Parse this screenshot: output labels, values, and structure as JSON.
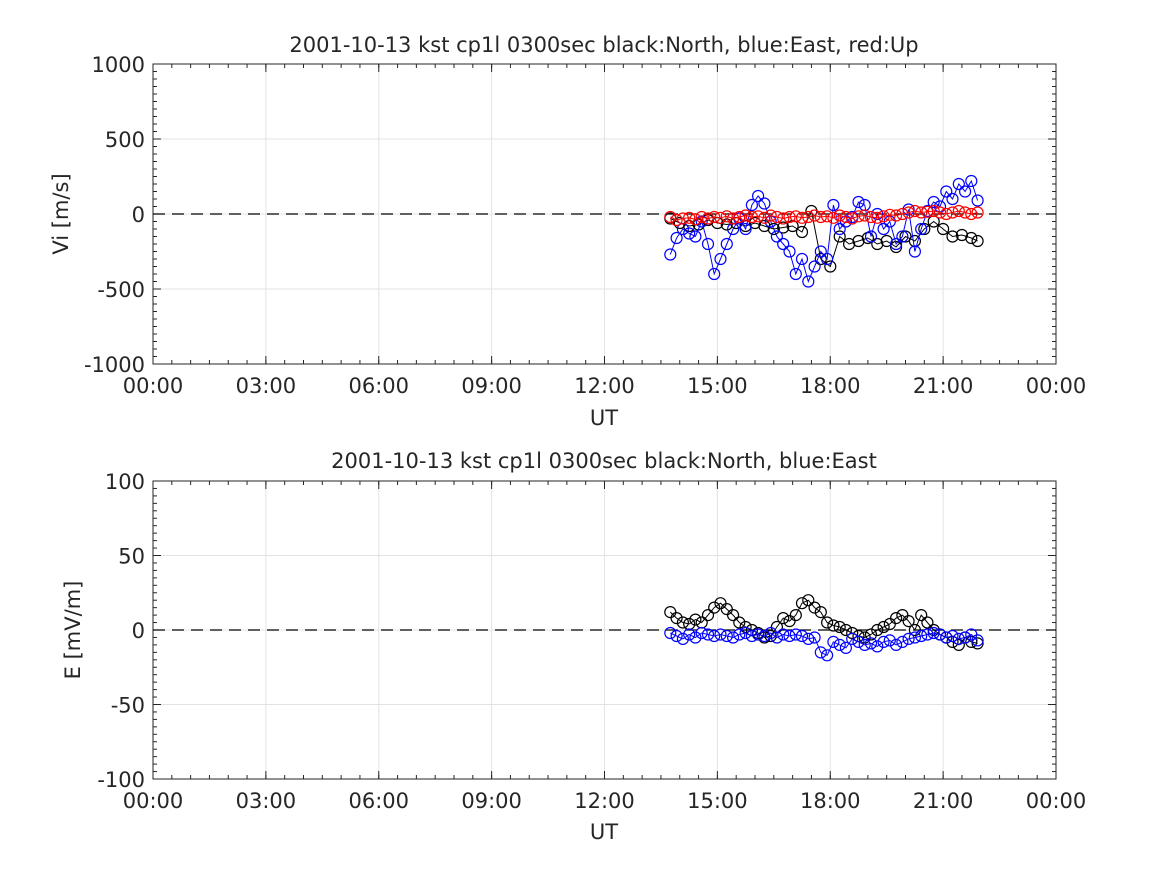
{
  "chart_data": [
    {
      "type": "scatter",
      "title": "2001-10-13 kst cp1l 0300sec black:North, blue:East, red:Up",
      "xlabel": "UT",
      "ylabel": "Vi [m/s]",
      "xlim": [
        "00:00",
        "24:00"
      ],
      "ylim": [
        -1000,
        1000
      ],
      "x_ticks": [
        "00:00",
        "03:00",
        "06:00",
        "09:00",
        "12:00",
        "15:00",
        "18:00",
        "21:00",
        "00:00"
      ],
      "y_ticks": [
        "-1000",
        "-500",
        "0",
        "500",
        "1000"
      ],
      "grid": true,
      "reference_line": {
        "y": 0,
        "style": "dashed"
      },
      "series": [
        {
          "name": "North",
          "color": "#000000",
          "marker": "circle",
          "x": [
            "13:45",
            "14:00",
            "14:15",
            "14:30",
            "14:45",
            "15:00",
            "15:15",
            "15:30",
            "15:45",
            "16:00",
            "16:15",
            "16:30",
            "16:45",
            "17:00",
            "17:15",
            "17:30",
            "17:45",
            "18:00",
            "18:15",
            "18:30",
            "18:45",
            "19:00",
            "19:15",
            "19:30",
            "19:45",
            "20:00",
            "20:15",
            "20:30",
            "20:45",
            "21:00",
            "21:15",
            "21:30",
            "21:45",
            "21:55"
          ],
          "y": [
            -30,
            -60,
            -80,
            -70,
            -40,
            -60,
            -70,
            -60,
            -80,
            -60,
            -80,
            -100,
            -90,
            -80,
            -120,
            20,
            -300,
            -350,
            -150,
            -200,
            -180,
            -160,
            -200,
            -180,
            -220,
            -150,
            -180,
            -100,
            -50,
            -100,
            -150,
            -140,
            -160,
            -180
          ]
        },
        {
          "name": "East",
          "color": "#0000ff",
          "marker": "circle",
          "x": [
            "13:45",
            "13:55",
            "14:05",
            "14:15",
            "14:25",
            "14:35",
            "14:45",
            "14:55",
            "15:05",
            "15:15",
            "15:25",
            "15:35",
            "15:45",
            "15:55",
            "16:05",
            "16:15",
            "16:25",
            "16:35",
            "16:45",
            "16:55",
            "17:05",
            "17:15",
            "17:25",
            "17:35",
            "17:45",
            "17:55",
            "18:05",
            "18:15",
            "18:25",
            "18:35",
            "18:45",
            "18:55",
            "19:05",
            "19:15",
            "19:25",
            "19:35",
            "19:45",
            "19:55",
            "20:05",
            "20:15",
            "20:25",
            "20:35",
            "20:45",
            "20:55",
            "21:05",
            "21:15",
            "21:25",
            "21:35",
            "21:45",
            "21:55"
          ],
          "y": [
            -270,
            -160,
            -100,
            -130,
            -150,
            -50,
            -200,
            -400,
            -300,
            -200,
            -100,
            -30,
            -100,
            60,
            120,
            70,
            -50,
            -150,
            -200,
            -250,
            -400,
            -300,
            -450,
            -350,
            -250,
            -300,
            60,
            -100,
            -50,
            -20,
            80,
            60,
            -150,
            0,
            -100,
            -50,
            -200,
            -150,
            30,
            -250,
            -100,
            20,
            80,
            50,
            150,
            100,
            200,
            150,
            220,
            90
          ]
        },
        {
          "name": "Up",
          "color": "#ff0000",
          "marker": "circle",
          "x": [
            "13:45",
            "13:55",
            "14:05",
            "14:15",
            "14:25",
            "14:35",
            "14:45",
            "14:55",
            "15:05",
            "15:15",
            "15:25",
            "15:35",
            "15:45",
            "15:55",
            "16:05",
            "16:15",
            "16:25",
            "16:35",
            "16:45",
            "16:55",
            "17:05",
            "17:15",
            "17:25",
            "17:35",
            "17:45",
            "17:55",
            "18:05",
            "18:15",
            "18:25",
            "18:35",
            "18:45",
            "18:55",
            "19:05",
            "19:15",
            "19:25",
            "19:35",
            "19:45",
            "19:55",
            "20:05",
            "20:15",
            "20:25",
            "20:35",
            "20:45",
            "20:55",
            "21:05",
            "21:15",
            "21:25",
            "21:35",
            "21:45",
            "21:55"
          ],
          "y": [
            -20,
            -40,
            -30,
            -25,
            -35,
            -20,
            -30,
            -20,
            -25,
            -15,
            -30,
            -20,
            -10,
            -20,
            -15,
            -25,
            -10,
            -20,
            -30,
            -20,
            -15,
            -25,
            -20,
            -10,
            -20,
            -15,
            -25,
            -10,
            -20,
            -30,
            -15,
            -10,
            -20,
            -25,
            -15,
            -5,
            -10,
            0,
            10,
            20,
            10,
            15,
            20,
            10,
            0,
            10,
            20,
            10,
            0,
            10
          ]
        }
      ]
    },
    {
      "type": "scatter",
      "title": "2001-10-13 kst cp1l 0300sec black:North, blue:East",
      "xlabel": "UT",
      "ylabel": "E [mV/m]",
      "xlim": [
        "00:00",
        "24:00"
      ],
      "ylim": [
        -100,
        100
      ],
      "x_ticks": [
        "00:00",
        "03:00",
        "06:00",
        "09:00",
        "12:00",
        "15:00",
        "18:00",
        "21:00",
        "00:00"
      ],
      "y_ticks": [
        "-100",
        "-50",
        "0",
        "50",
        "100"
      ],
      "grid": true,
      "reference_line": {
        "y": 0,
        "style": "dashed"
      },
      "series": [
        {
          "name": "North",
          "color": "#000000",
          "marker": "circle",
          "x": [
            "13:45",
            "13:55",
            "14:05",
            "14:15",
            "14:25",
            "14:35",
            "14:45",
            "14:55",
            "15:05",
            "15:15",
            "15:25",
            "15:35",
            "15:45",
            "15:55",
            "16:05",
            "16:15",
            "16:25",
            "16:35",
            "16:45",
            "16:55",
            "17:05",
            "17:15",
            "17:25",
            "17:35",
            "17:45",
            "17:55",
            "18:05",
            "18:15",
            "18:25",
            "18:35",
            "18:45",
            "18:55",
            "19:05",
            "19:15",
            "19:25",
            "19:35",
            "19:45",
            "19:55",
            "20:05",
            "20:15",
            "20:25",
            "20:35",
            "20:45",
            "20:55",
            "21:05",
            "21:15",
            "21:25",
            "21:35",
            "21:45",
            "21:55"
          ],
          "y": [
            12,
            8,
            5,
            4,
            7,
            5,
            10,
            15,
            18,
            14,
            10,
            5,
            2,
            0,
            -2,
            -5,
            -4,
            2,
            8,
            6,
            10,
            18,
            20,
            15,
            12,
            5,
            3,
            2,
            0,
            -2,
            -4,
            -5,
            -3,
            0,
            2,
            4,
            8,
            10,
            6,
            0,
            10,
            5,
            0,
            -3,
            -5,
            -8,
            -10,
            -5,
            -8,
            -9
          ]
        },
        {
          "name": "East",
          "color": "#0000ff",
          "marker": "circle",
          "x": [
            "13:45",
            "13:55",
            "14:05",
            "14:15",
            "14:25",
            "14:35",
            "14:45",
            "14:55",
            "15:05",
            "15:15",
            "15:25",
            "15:35",
            "15:45",
            "15:55",
            "16:05",
            "16:15",
            "16:25",
            "16:35",
            "16:45",
            "16:55",
            "17:05",
            "17:15",
            "17:25",
            "17:35",
            "17:45",
            "17:55",
            "18:05",
            "18:15",
            "18:25",
            "18:35",
            "18:45",
            "18:55",
            "19:05",
            "19:15",
            "19:25",
            "19:35",
            "19:45",
            "19:55",
            "20:05",
            "20:15",
            "20:25",
            "20:35",
            "20:45",
            "20:55",
            "21:05",
            "21:15",
            "21:25",
            "21:35",
            "21:45",
            "21:55"
          ],
          "y": [
            -2,
            -4,
            -6,
            -3,
            -5,
            -2,
            -3,
            -4,
            -3,
            -4,
            -5,
            -3,
            -2,
            -4,
            -3,
            -4,
            -2,
            -5,
            -3,
            -4,
            -3,
            -4,
            -6,
            -5,
            -15,
            -17,
            -8,
            -10,
            -12,
            -6,
            -8,
            -10,
            -9,
            -11,
            -8,
            -7,
            -10,
            -8,
            -6,
            -5,
            -4,
            -3,
            -2,
            -3,
            -5,
            -4,
            -6,
            -5,
            -3,
            -7
          ]
        }
      ]
    }
  ]
}
